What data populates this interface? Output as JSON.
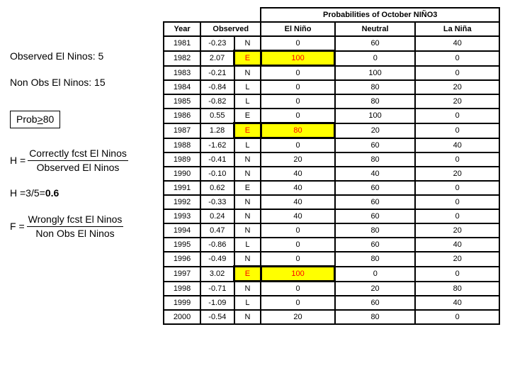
{
  "left": {
    "obs_label": "Observed El Ninos: 5",
    "nonobs_label": "Non Obs El Ninos: 15",
    "prob_label_prefix": "Prob",
    "prob_label_suffix": "80",
    "h_eq": "H =",
    "h_num": "Correctly fcst El Ninos",
    "h_den": "Observed El Ninos",
    "h_calc": "H =3/5=",
    "h_val": "0.6",
    "f_eq": "F =",
    "f_num": "Wrongly fcst El Ninos",
    "f_den": "Non Obs El Ninos"
  },
  "table": {
    "title": "Probabilities of October NIÑO3",
    "headers": {
      "year": "Year",
      "observed": "Observed",
      "elnino": "El Niño",
      "neutral": "Neutral",
      "lanina": "La Niña"
    },
    "rows": [
      {
        "year": "1981",
        "obs": "-0.23",
        "cat": "N",
        "en": "0",
        "neu": "60",
        "ln": "40",
        "hl": false
      },
      {
        "year": "1982",
        "obs": "2.07",
        "cat": "E",
        "en": "100",
        "neu": "0",
        "ln": "0",
        "hl": true
      },
      {
        "year": "1983",
        "obs": "-0.21",
        "cat": "N",
        "en": "0",
        "neu": "100",
        "ln": "0",
        "hl": false
      },
      {
        "year": "1984",
        "obs": "-0.84",
        "cat": "L",
        "en": "0",
        "neu": "80",
        "ln": "20",
        "hl": false
      },
      {
        "year": "1985",
        "obs": "-0.82",
        "cat": "L",
        "en": "0",
        "neu": "80",
        "ln": "20",
        "hl": false
      },
      {
        "year": "1986",
        "obs": "0.55",
        "cat": "E",
        "en": "0",
        "neu": "100",
        "ln": "0",
        "hl": false
      },
      {
        "year": "1987",
        "obs": "1.28",
        "cat": "E",
        "en": "80",
        "neu": "20",
        "ln": "0",
        "hl": true
      },
      {
        "year": "1988",
        "obs": "-1.62",
        "cat": "L",
        "en": "0",
        "neu": "60",
        "ln": "40",
        "hl": false
      },
      {
        "year": "1989",
        "obs": "-0.41",
        "cat": "N",
        "en": "20",
        "neu": "80",
        "ln": "0",
        "hl": false
      },
      {
        "year": "1990",
        "obs": "-0.10",
        "cat": "N",
        "en": "40",
        "neu": "40",
        "ln": "20",
        "hl": false
      },
      {
        "year": "1991",
        "obs": "0.62",
        "cat": "E",
        "en": "40",
        "neu": "60",
        "ln": "0",
        "hl": false
      },
      {
        "year": "1992",
        "obs": "-0.33",
        "cat": "N",
        "en": "40",
        "neu": "60",
        "ln": "0",
        "hl": false
      },
      {
        "year": "1993",
        "obs": "0.24",
        "cat": "N",
        "en": "40",
        "neu": "60",
        "ln": "0",
        "hl": false
      },
      {
        "year": "1994",
        "obs": "0.47",
        "cat": "N",
        "en": "0",
        "neu": "80",
        "ln": "20",
        "hl": false
      },
      {
        "year": "1995",
        "obs": "-0.86",
        "cat": "L",
        "en": "0",
        "neu": "60",
        "ln": "40",
        "hl": false
      },
      {
        "year": "1996",
        "obs": "-0.49",
        "cat": "N",
        "en": "0",
        "neu": "80",
        "ln": "20",
        "hl": false
      },
      {
        "year": "1997",
        "obs": "3.02",
        "cat": "E",
        "en": "100",
        "neu": "0",
        "ln": "0",
        "hl": true
      },
      {
        "year": "1998",
        "obs": "-0.71",
        "cat": "N",
        "en": "0",
        "neu": "20",
        "ln": "80",
        "hl": false
      },
      {
        "year": "1999",
        "obs": "-1.09",
        "cat": "L",
        "en": "0",
        "neu": "60",
        "ln": "40",
        "hl": false
      },
      {
        "year": "2000",
        "obs": "-0.54",
        "cat": "N",
        "en": "20",
        "neu": "80",
        "ln": "0",
        "hl": false
      }
    ]
  }
}
